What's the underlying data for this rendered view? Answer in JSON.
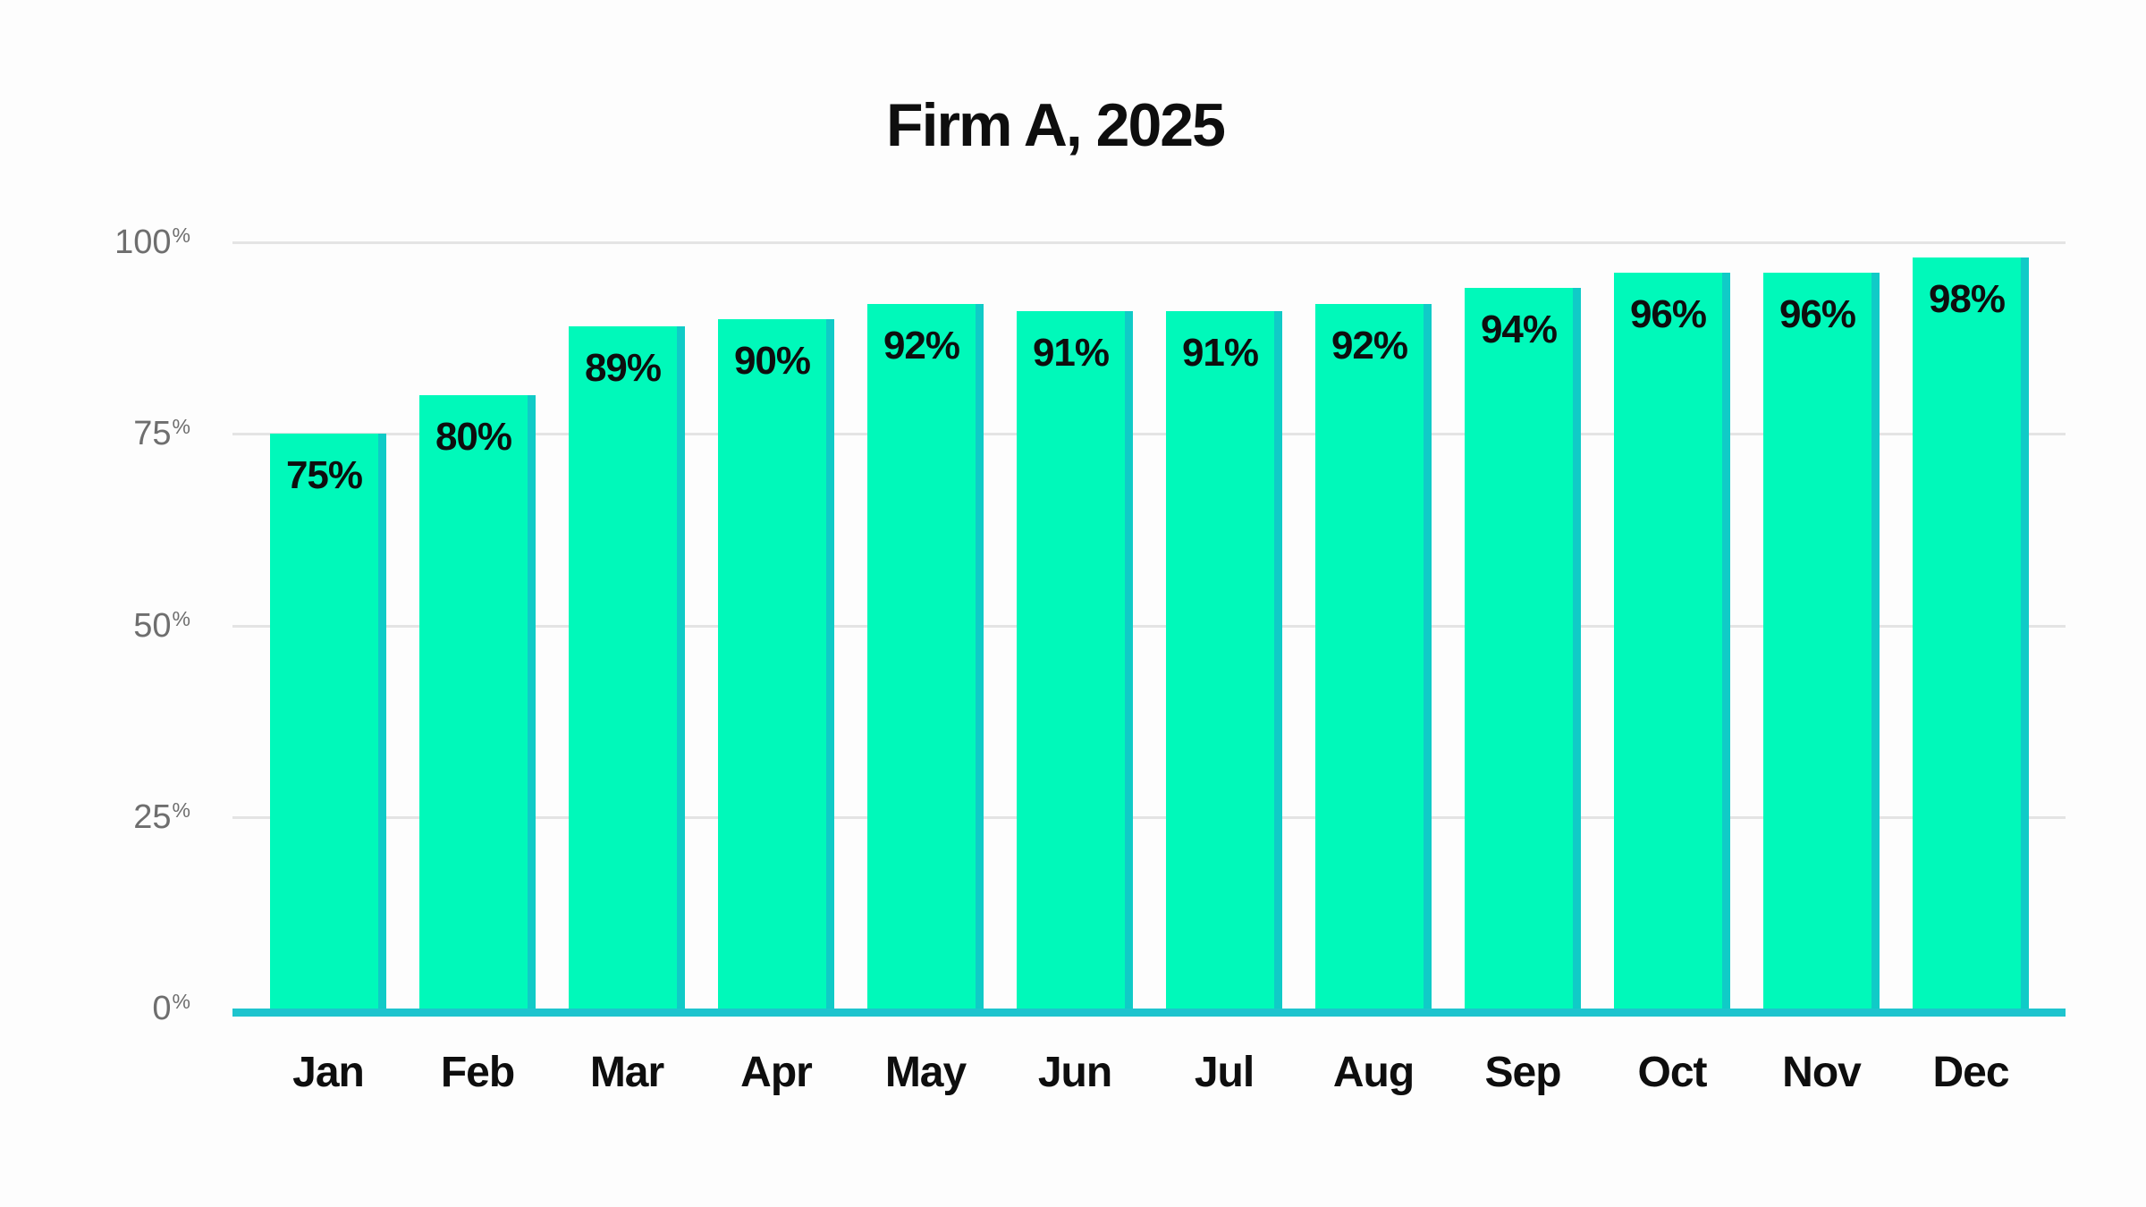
{
  "page": {
    "background": "#fdfdfd"
  },
  "chart_data": {
    "type": "bar",
    "title": "Firm A, 2025",
    "categories": [
      "Jan",
      "Feb",
      "Mar",
      "Apr",
      "May",
      "Jun",
      "Jul",
      "Aug",
      "Sep",
      "Oct",
      "Nov",
      "Dec"
    ],
    "values": [
      75,
      80,
      89,
      90,
      92,
      91,
      91,
      92,
      94,
      96,
      96,
      98
    ],
    "value_labels": [
      "75%",
      "80%",
      "89%",
      "90%",
      "92%",
      "91%",
      "91%",
      "92%",
      "94%",
      "96%",
      "96%",
      "98%"
    ],
    "xlabel": "",
    "ylabel": "",
    "ylim": [
      0,
      100
    ],
    "yticks": [
      0,
      25,
      50,
      75,
      100
    ],
    "ytick_suffix": "%",
    "grid": "horizontal",
    "legend": "none",
    "colors": {
      "bar_fill": "#00f9ba",
      "bar_side": "#10cbc7",
      "axis_line": "#1ec4ce",
      "gridline": "#e4e4e4",
      "tick_label": "#6e6e6e",
      "text": "#0e0e0e",
      "bg": "#fdfdfd"
    }
  }
}
